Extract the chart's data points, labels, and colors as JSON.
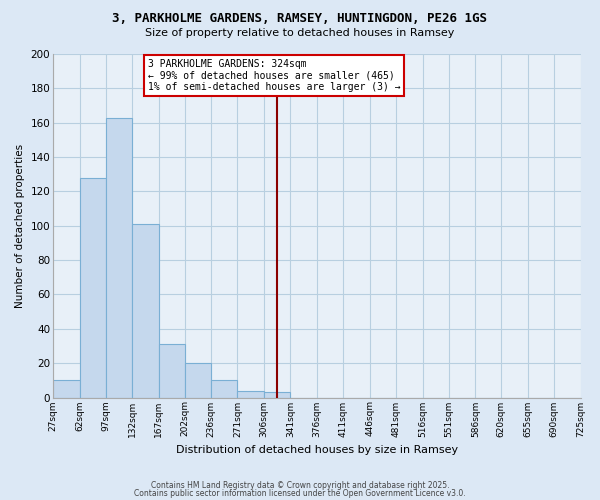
{
  "title": "3, PARKHOLME GARDENS, RAMSEY, HUNTINGDON, PE26 1GS",
  "subtitle": "Size of property relative to detached houses in Ramsey",
  "bar_values": [
    10,
    128,
    163,
    101,
    31,
    20,
    10,
    4,
    3,
    0,
    0,
    0,
    0,
    0,
    0,
    0,
    0,
    0,
    0,
    0
  ],
  "bin_labels": [
    "27sqm",
    "62sqm",
    "97sqm",
    "132sqm",
    "167sqm",
    "202sqm",
    "236sqm",
    "271sqm",
    "306sqm",
    "341sqm",
    "376sqm",
    "411sqm",
    "446sqm",
    "481sqm",
    "516sqm",
    "551sqm",
    "586sqm",
    "620sqm",
    "655sqm",
    "690sqm",
    "725sqm"
  ],
  "bin_edges": [
    27,
    62,
    97,
    132,
    167,
    202,
    236,
    271,
    306,
    341,
    376,
    411,
    446,
    481,
    516,
    551,
    586,
    620,
    655,
    690,
    725
  ],
  "bar_color": "#c5d8ed",
  "bar_edgecolor": "#7aafd4",
  "vline_x": 324,
  "vline_color": "#8b0000",
  "ylabel": "Number of detached properties",
  "xlabel": "Distribution of detached houses by size in Ramsey",
  "ylim": [
    0,
    200
  ],
  "yticks": [
    0,
    20,
    40,
    60,
    80,
    100,
    120,
    140,
    160,
    180,
    200
  ],
  "annotation_title": "3 PARKHOLME GARDENS: 324sqm",
  "annotation_line1": "← 99% of detached houses are smaller (465)",
  "annotation_line2": "1% of semi-detached houses are larger (3) →",
  "annotation_box_color": "#ffffff",
  "annotation_box_edgecolor": "#cc0000",
  "footnote1": "Contains HM Land Registry data © Crown copyright and database right 2025.",
  "footnote2": "Contains public sector information licensed under the Open Government Licence v3.0.",
  "bg_color": "#dce8f5",
  "grid_color": "#b8cfe0",
  "plot_bg_color": "#e8f0f8"
}
